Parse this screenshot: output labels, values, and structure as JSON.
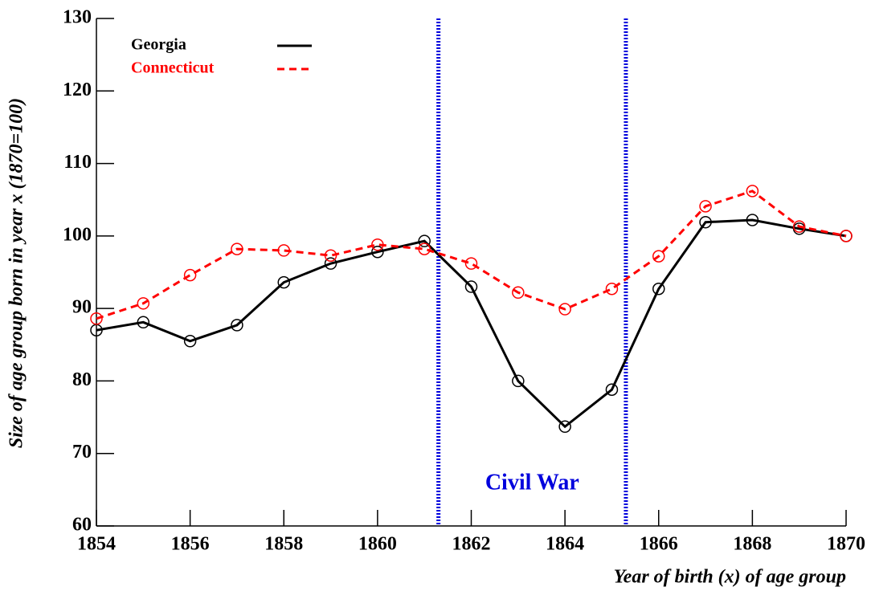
{
  "chart_data": {
    "type": "line",
    "x_label": "Year of birth (x) of age group",
    "y_label": "Size of age group born in year x (1870=100)",
    "x": [
      1854,
      1855,
      1856,
      1857,
      1858,
      1859,
      1860,
      1861,
      1862,
      1863,
      1864,
      1865,
      1866,
      1867,
      1868,
      1869,
      1870
    ],
    "series": [
      {
        "name": "Georgia",
        "color": "#000000",
        "dash": false,
        "values": [
          87.0,
          88.1,
          85.5,
          87.7,
          93.6,
          96.2,
          97.8,
          99.3,
          93.0,
          80.0,
          73.7,
          78.8,
          92.7,
          101.9,
          102.2,
          101.0,
          100
        ]
      },
      {
        "name": "Connecticut",
        "color": "#ff0000",
        "dash": true,
        "values": [
          88.6,
          90.7,
          94.6,
          98.2,
          98.0,
          97.3,
          98.8,
          98.2,
          96.2,
          92.2,
          89.9,
          92.7,
          97.2,
          104.1,
          106.2,
          101.3,
          100
        ]
      }
    ],
    "vlines": [
      1861.3,
      1865.3
    ],
    "vline_color": "#0000dd",
    "annotation": "Civil War",
    "xlim": [
      1854,
      1870
    ],
    "xticks": [
      1854,
      1856,
      1858,
      1860,
      1862,
      1864,
      1866,
      1868,
      1870
    ],
    "ylim": [
      60,
      130
    ],
    "yticks": [
      60,
      70,
      80,
      90,
      100,
      110,
      120,
      130
    ],
    "legend": "upper-left",
    "markers": "open-circle"
  }
}
